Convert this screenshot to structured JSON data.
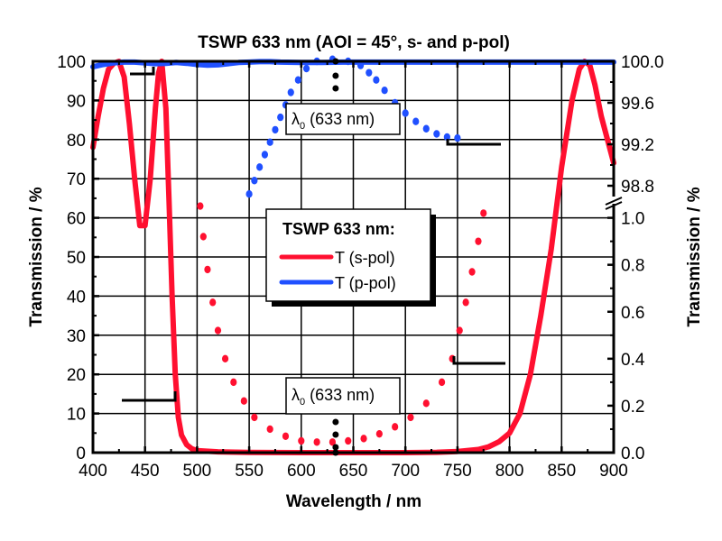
{
  "chart_data": {
    "type": "line",
    "title": "TSWP 633 nm (AOI = 45°, s- and p-pol)",
    "xlabel": "Wavelength / nm",
    "ylabel": "Transmission / %",
    "y2label": "Transmission / %",
    "xlim": [
      400,
      900
    ],
    "ylim": [
      0,
      100
    ],
    "y2_lower_range": [
      0.0,
      1.0
    ],
    "y2_upper_range": [
      98.8,
      100.0
    ],
    "grid": true,
    "x_ticks": [
      "400",
      "450",
      "500",
      "550",
      "600",
      "650",
      "700",
      "750",
      "800",
      "850",
      "900"
    ],
    "y_ticks": [
      "0",
      "10",
      "20",
      "30",
      "40",
      "50",
      "60",
      "70",
      "80",
      "90",
      "100"
    ],
    "y2_ticks_lower": [
      "0.0",
      "0.2",
      "0.4",
      "0.6",
      "0.8",
      "1.0"
    ],
    "y2_ticks_upper": [
      "98.8",
      "99.2",
      "99.6",
      "100.0"
    ],
    "legend": {
      "title": "TSWP 633 nm:",
      "placement": "center",
      "entries": [
        {
          "label": "T (s-pol)",
          "color": "#ff1030"
        },
        {
          "label": "T (p-pol)",
          "color": "#2050ff"
        }
      ]
    },
    "annotations": [
      {
        "text_main": "λ",
        "text_sub": "0",
        "text_rest": " (633 nm)",
        "x": 633,
        "near": "top"
      },
      {
        "text_main": "λ",
        "text_sub": "0",
        "text_rest": " (633 nm)",
        "x": 633,
        "near": "bottom"
      }
    ],
    "series": [
      {
        "name": "T (s-pol)",
        "axis": "left",
        "style": "solid",
        "color": "#ff1030",
        "x": [
          400,
          405,
          410,
          415,
          420,
          425,
          430,
          435,
          440,
          445,
          450,
          455,
          460,
          463,
          466,
          470,
          473,
          476,
          479,
          482,
          485,
          490,
          495,
          500,
          520,
          550,
          600,
          650,
          700,
          730,
          750,
          770,
          780,
          790,
          800,
          810,
          820,
          830,
          840,
          850,
          860,
          867,
          872,
          877,
          882,
          888,
          894,
          900
        ],
        "y": [
          78,
          86,
          93,
          98,
          99.5,
          100,
          96,
          84,
          70,
          58,
          58,
          70,
          88,
          97,
          100,
          88,
          65,
          40,
          20,
          9,
          4.5,
          2,
          1,
          0.5,
          0.2,
          0.05,
          0,
          0,
          0,
          0.1,
          0.3,
          0.8,
          1.5,
          2.8,
          5,
          10,
          20,
          35,
          52,
          73,
          90,
          98,
          100,
          99,
          94,
          86,
          80,
          74
        ]
      },
      {
        "name": "T (p-pol)",
        "axis": "left",
        "style": "solid",
        "color": "#2050ff",
        "x": [
          400,
          410,
          420,
          430,
          440,
          450,
          460,
          470,
          480,
          490,
          500,
          510,
          520,
          530,
          540,
          550,
          560,
          570,
          580,
          600,
          620,
          640,
          660,
          680,
          700,
          750,
          800,
          850,
          900
        ],
        "y": [
          98.6,
          99.2,
          99.6,
          99.8,
          99.8,
          99.6,
          99.4,
          99.5,
          99.7,
          99.5,
          99.2,
          99.0,
          99.1,
          99.4,
          99.7,
          99.8,
          99.9,
          99.9,
          99.8,
          99.7,
          99.7,
          99.8,
          99.8,
          99.8,
          99.8,
          99.8,
          99.8,
          99.8,
          99.8
        ]
      },
      {
        "name": "T (s-pol) zoom",
        "axis": "right-lower",
        "style": "dotted",
        "color": "#ff1030",
        "x": [
          503,
          506,
          510,
          515,
          520,
          527,
          535,
          545,
          555,
          570,
          585,
          600,
          615,
          630,
          645,
          660,
          675,
          690,
          705,
          720,
          735,
          745,
          752,
          758,
          764,
          770,
          775
        ],
        "y": [
          1.05,
          0.92,
          0.78,
          0.64,
          0.52,
          0.4,
          0.3,
          0.22,
          0.15,
          0.1,
          0.07,
          0.05,
          0.045,
          0.045,
          0.05,
          0.06,
          0.08,
          0.11,
          0.15,
          0.21,
          0.3,
          0.4,
          0.52,
          0.64,
          0.77,
          0.9,
          1.02
        ]
      },
      {
        "name": "T (p-pol) zoom",
        "axis": "right-upper",
        "style": "dotted",
        "color": "#2050ff",
        "x": [
          550,
          555,
          560,
          565,
          570,
          575,
          580,
          585,
          590,
          597,
          605,
          615,
          630,
          645,
          657,
          665,
          672,
          680,
          690,
          700,
          710,
          720,
          730,
          740,
          750
        ],
        "y": [
          98.72,
          98.85,
          98.98,
          99.1,
          99.22,
          99.34,
          99.46,
          99.58,
          99.7,
          99.82,
          99.93,
          100.0,
          100.02,
          100.0,
          99.96,
          99.89,
          99.82,
          99.72,
          99.6,
          99.5,
          99.42,
          99.35,
          99.3,
          99.27,
          99.26
        ]
      }
    ]
  }
}
